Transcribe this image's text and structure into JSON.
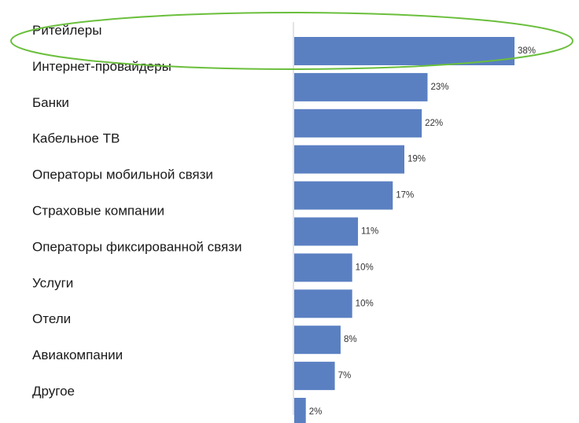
{
  "chart_data": {
    "type": "bar",
    "orientation": "horizontal",
    "categories": [
      "Ритейлеры",
      "Интернет-провайдеры",
      "Банки",
      "Кабельное ТВ",
      "Операторы мобильной связи",
      "Страховые компании",
      "Операторы фиксированной связи",
      "Услуги",
      "Отели",
      "Авиакомпании",
      "Другое"
    ],
    "values": [
      38,
      23,
      22,
      19,
      17,
      11,
      10,
      10,
      8,
      7,
      2
    ],
    "value_labels": [
      "38%",
      "23%",
      "22%",
      "19%",
      "17%",
      "11%",
      "10%",
      "10%",
      "8%",
      "7%",
      "2%"
    ],
    "unit": "%",
    "xlim": [
      0,
      38
    ],
    "title": "",
    "xlabel": "",
    "ylabel": "",
    "grid": false,
    "legend": "none",
    "highlighted_category": "Ритейлеры",
    "colors": {
      "bar": "#5b80c2",
      "axis": "#c8c8c8",
      "highlight": "#6abf3c",
      "label": "#1a1a1a",
      "value_label": "#333333"
    }
  }
}
